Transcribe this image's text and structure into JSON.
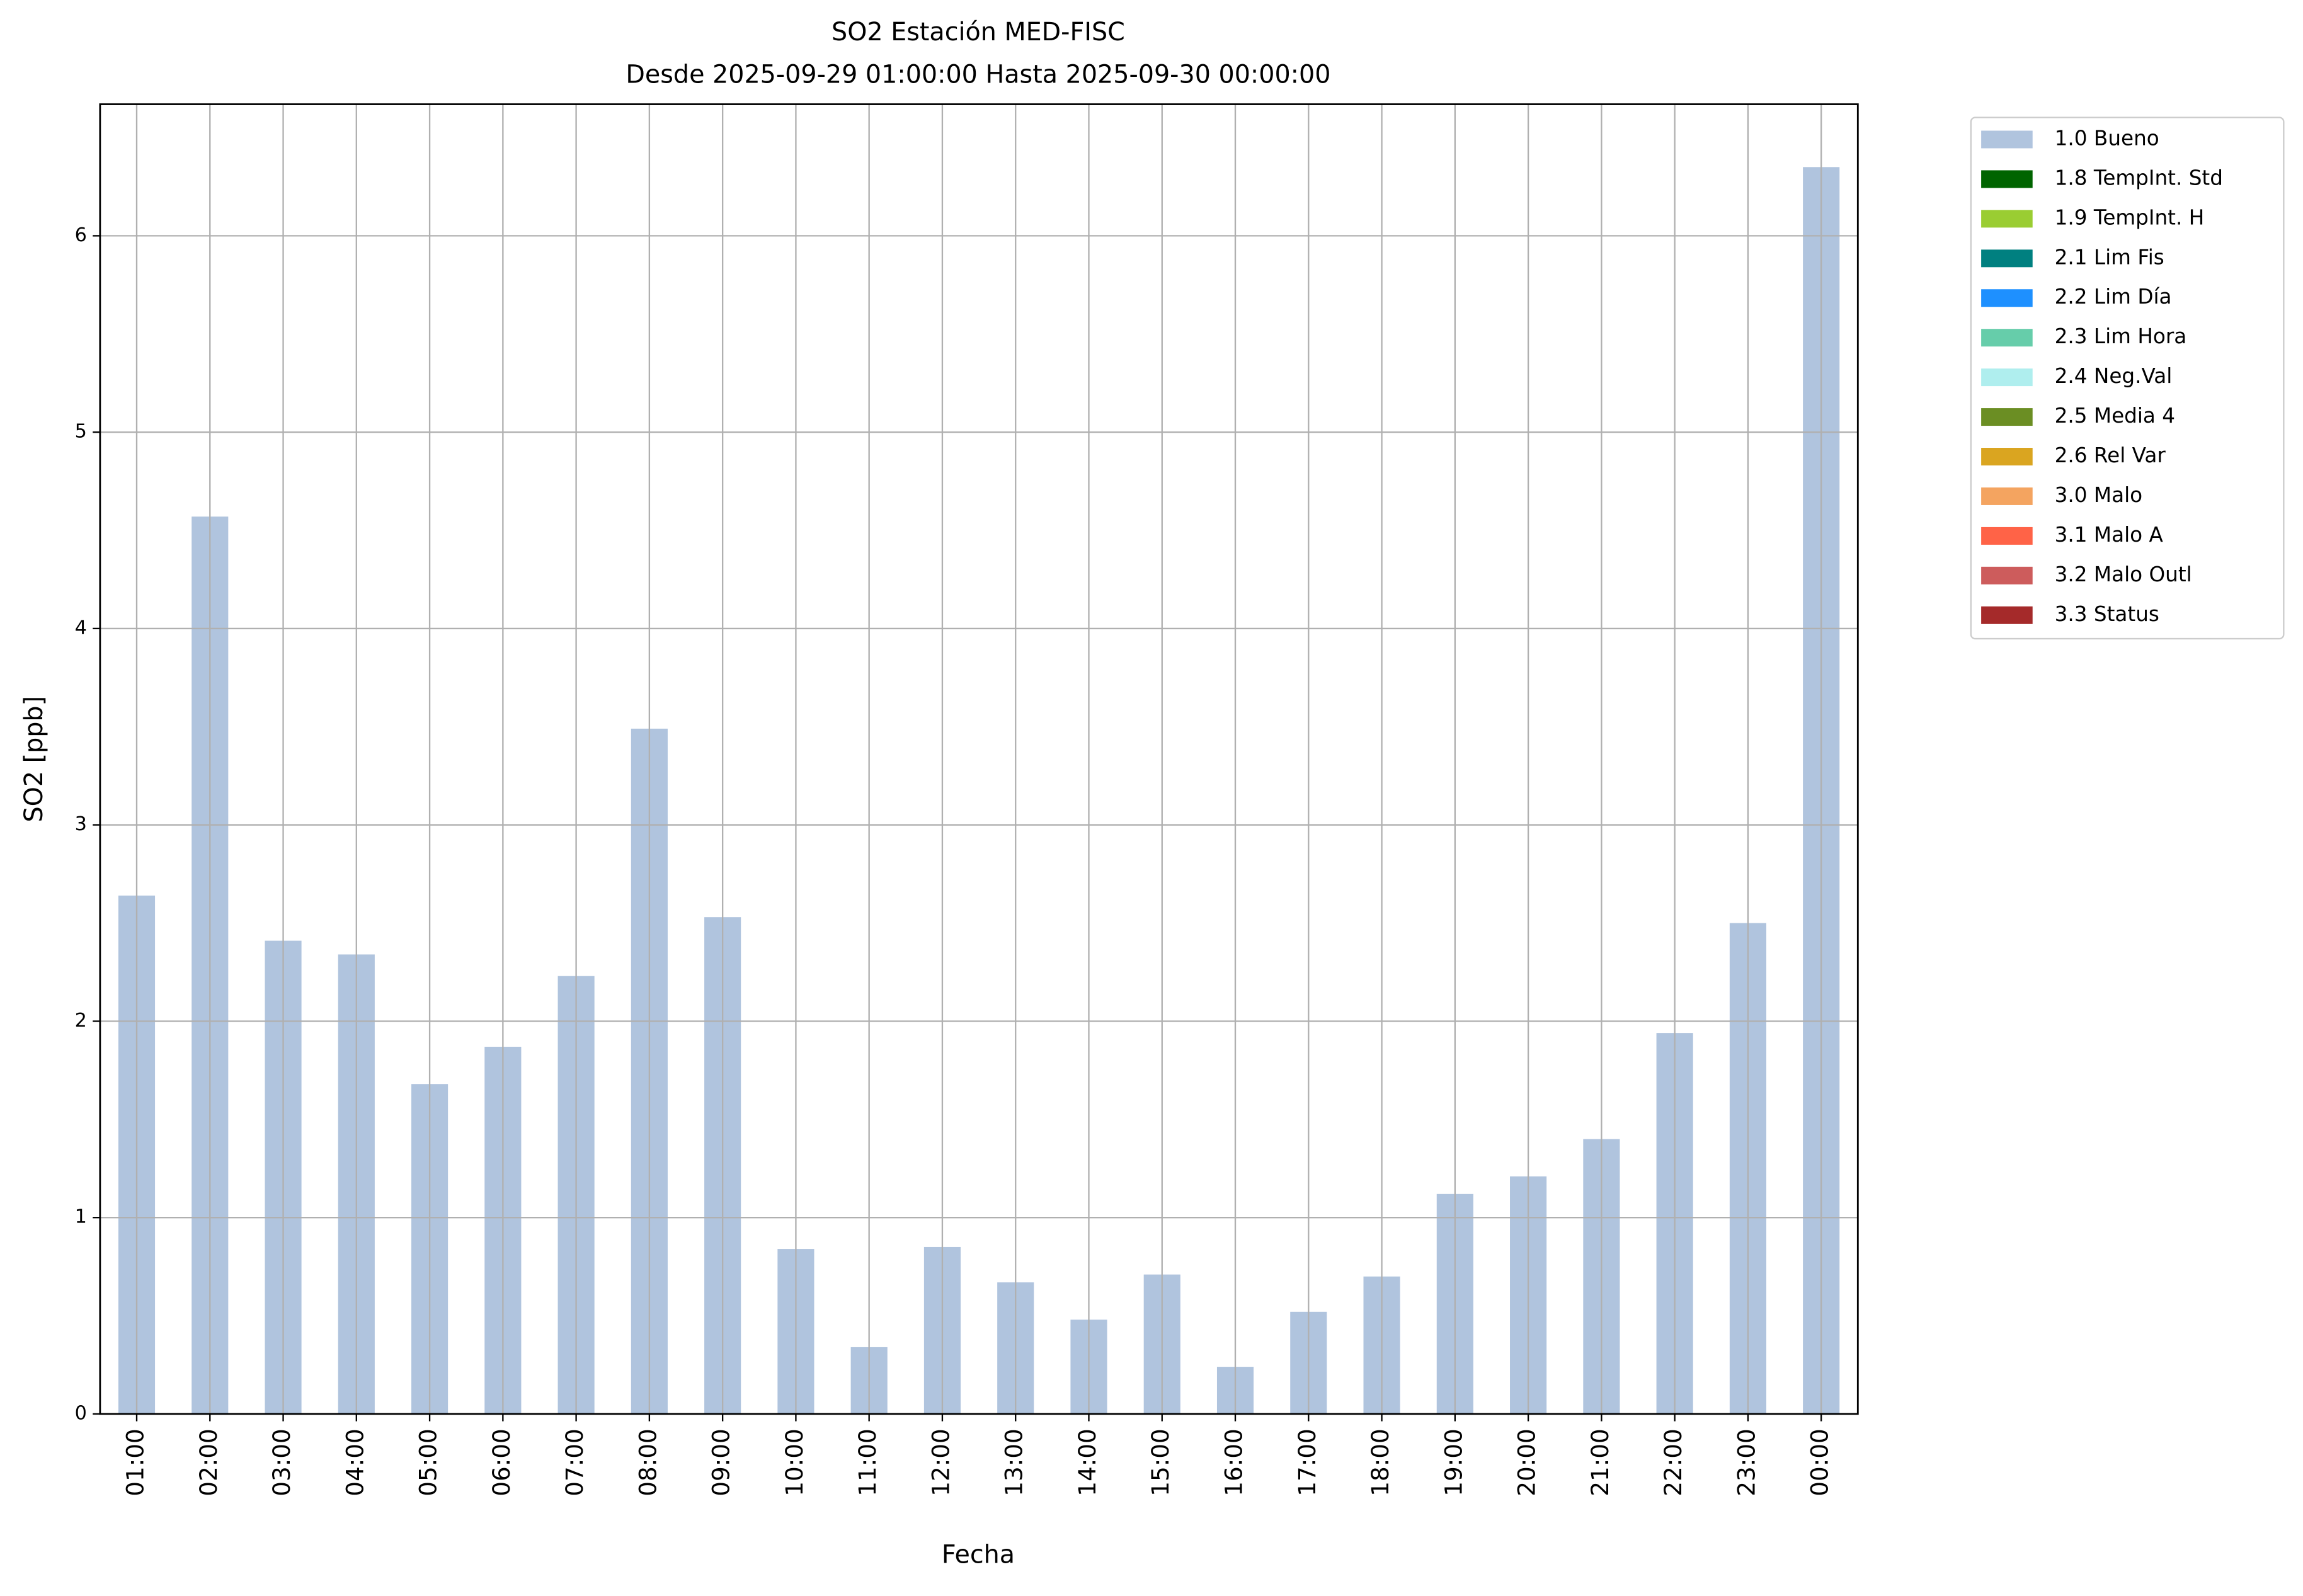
{
  "chart_data": {
    "type": "bar",
    "stacked": true,
    "title": "SO2 Estación MED-FISC",
    "subtitle": "Desde 2025-09-29 01:00:00 Hasta 2025-09-30 00:00:00",
    "x_label": "Fecha",
    "y_label": "SO2 [ppb]",
    "categories": [
      "01:00",
      "02:00",
      "03:00",
      "04:00",
      "05:00",
      "06:00",
      "07:00",
      "08:00",
      "09:00",
      "10:00",
      "11:00",
      "12:00",
      "13:00",
      "14:00",
      "15:00",
      "16:00",
      "17:00",
      "18:00",
      "19:00",
      "20:00",
      "21:00",
      "22:00",
      "23:00",
      "00:00"
    ],
    "series": [
      {
        "name": "1.0 Bueno",
        "color": "#b0c4de",
        "values": [
          2.64,
          4.57,
          2.41,
          2.34,
          1.68,
          1.87,
          2.23,
          3.49,
          2.53,
          0.84,
          0.34,
          0.85,
          0.67,
          0.48,
          0.71,
          0.24,
          0.52,
          0.7,
          1.12,
          1.21,
          1.4,
          1.94,
          2.5,
          6.35
        ]
      },
      {
        "name": "1.8 TempInt. Std",
        "color": "#006400",
        "values": [
          0,
          0,
          0,
          0,
          0,
          0,
          0,
          0,
          0,
          0,
          0,
          0,
          0,
          0,
          0,
          0,
          0,
          0,
          0,
          0,
          0,
          0,
          0,
          0
        ]
      },
      {
        "name": "1.9 TempInt. H",
        "color": "#9acd32",
        "values": [
          0,
          0,
          0,
          0,
          0,
          0,
          0,
          0,
          0,
          0,
          0,
          0,
          0,
          0,
          0,
          0,
          0,
          0,
          0,
          0,
          0,
          0,
          0,
          0
        ]
      },
      {
        "name": "2.1 Lim Fis",
        "color": "#008080",
        "values": [
          0,
          0,
          0,
          0,
          0,
          0,
          0,
          0,
          0,
          0,
          0,
          0,
          0,
          0,
          0,
          0,
          0,
          0,
          0,
          0,
          0,
          0,
          0,
          0
        ]
      },
      {
        "name": "2.2 Lim Día",
        "color": "#1e90ff",
        "values": [
          0,
          0,
          0,
          0,
          0,
          0,
          0,
          0,
          0,
          0,
          0,
          0,
          0,
          0,
          0,
          0,
          0,
          0,
          0,
          0,
          0,
          0,
          0,
          0
        ]
      },
      {
        "name": "2.3 Lim Hora",
        "color": "#66cdaa",
        "values": [
          0,
          0,
          0,
          0,
          0,
          0,
          0,
          0,
          0,
          0,
          0,
          0,
          0,
          0,
          0,
          0,
          0,
          0,
          0,
          0,
          0,
          0,
          0,
          0
        ]
      },
      {
        "name": "2.4 Neg.Val",
        "color": "#afeeee",
        "values": [
          0,
          0,
          0,
          0,
          0,
          0,
          0,
          0,
          0,
          0,
          0,
          0,
          0,
          0,
          0,
          0,
          0,
          0,
          0,
          0,
          0,
          0,
          0,
          0
        ]
      },
      {
        "name": "2.5 Media 4",
        "color": "#6b8e23",
        "values": [
          0,
          0,
          0,
          0,
          0,
          0,
          0,
          0,
          0,
          0,
          0,
          0,
          0,
          0,
          0,
          0,
          0,
          0,
          0,
          0,
          0,
          0,
          0,
          0
        ]
      },
      {
        "name": "2.6 Rel Var",
        "color": "#daa520",
        "values": [
          0,
          0,
          0,
          0,
          0,
          0,
          0,
          0,
          0,
          0,
          0,
          0,
          0,
          0,
          0,
          0,
          0,
          0,
          0,
          0,
          0,
          0,
          0,
          0
        ]
      },
      {
        "name": "3.0 Malo",
        "color": "#f4a460",
        "values": [
          0,
          0,
          0,
          0,
          0,
          0,
          0,
          0,
          0,
          0,
          0,
          0,
          0,
          0,
          0,
          0,
          0,
          0,
          0,
          0,
          0,
          0,
          0,
          0
        ]
      },
      {
        "name": "3.1 Malo A",
        "color": "#ff6347",
        "values": [
          0,
          0,
          0,
          0,
          0,
          0,
          0,
          0,
          0,
          0,
          0,
          0,
          0,
          0,
          0,
          0,
          0,
          0,
          0,
          0,
          0,
          0,
          0,
          0
        ]
      },
      {
        "name": "3.2 Malo Outl",
        "color": "#cd5c5c",
        "values": [
          0,
          0,
          0,
          0,
          0,
          0,
          0,
          0,
          0,
          0,
          0,
          0,
          0,
          0,
          0,
          0,
          0,
          0,
          0,
          0,
          0,
          0,
          0,
          0
        ]
      },
      {
        "name": "3.3 Status",
        "color": "#a52a2a",
        "values": [
          0,
          0,
          0,
          0,
          0,
          0,
          0,
          0,
          0,
          0,
          0,
          0,
          0,
          0,
          0,
          0,
          0,
          0,
          0,
          0,
          0,
          0,
          0,
          0
        ]
      }
    ],
    "ylim": [
      0,
      6.67
    ],
    "yticks": [
      0,
      1,
      2,
      3,
      4,
      5,
      6
    ],
    "grid": true,
    "legend": "outside-right"
  }
}
